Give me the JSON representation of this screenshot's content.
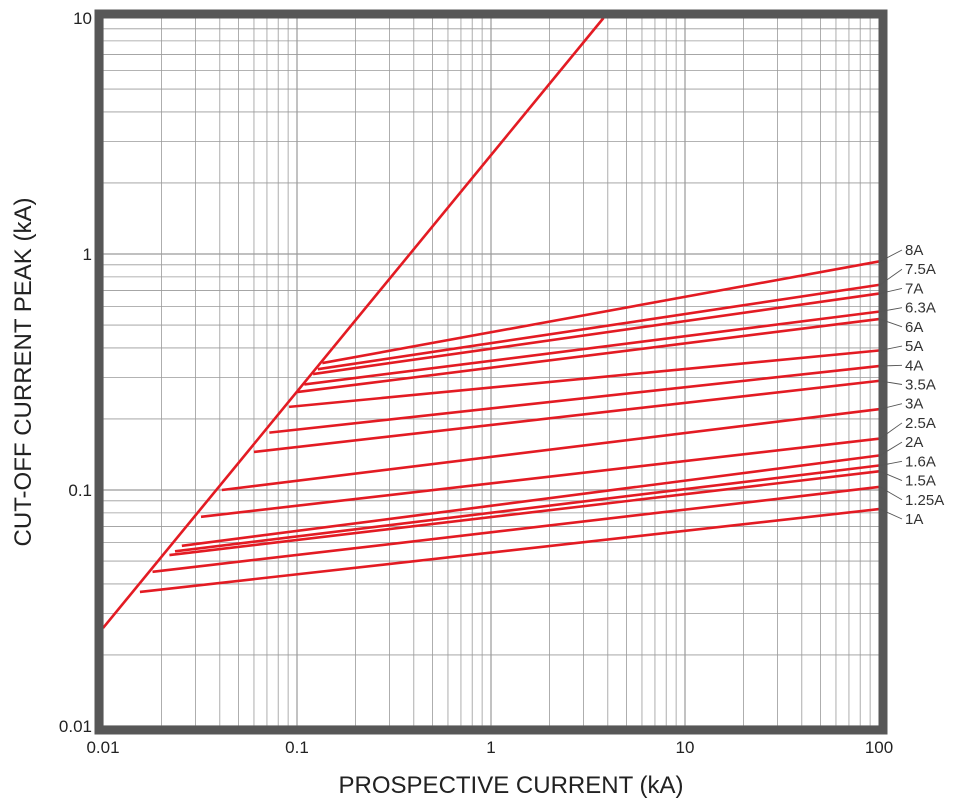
{
  "chart_data": {
    "type": "line",
    "title": "",
    "xlabel": "PROSPECTIVE CURRENT (kA)",
    "ylabel": "CUT-OFF CURRENT PEAK (kA)",
    "xscale": "log",
    "yscale": "log",
    "xlim": [
      0.01,
      100
    ],
    "ylim": [
      0.01,
      10
    ],
    "grid": true,
    "legend": "none",
    "x_ticks": [
      "0.01",
      "0.1",
      "1",
      "10",
      "100"
    ],
    "y_ticks": [
      "0.01",
      "0.1",
      "1",
      "10"
    ],
    "colors": {
      "curve": "#e31b23",
      "grid": "#9a9a9a",
      "frame": "#575757"
    },
    "envelope": {
      "x": [
        0.01,
        3.8
      ],
      "y": [
        0.026,
        10
      ]
    },
    "series": [
      {
        "name": "8A",
        "x": [
          0.135,
          100
        ],
        "y": [
          0.345,
          0.93
        ]
      },
      {
        "name": "7.5A",
        "x": [
          0.128,
          100
        ],
        "y": [
          0.325,
          0.74
        ]
      },
      {
        "name": "7A",
        "x": [
          0.121,
          100
        ],
        "y": [
          0.31,
          0.68
        ]
      },
      {
        "name": "6.3A",
        "x": [
          0.109,
          100
        ],
        "y": [
          0.28,
          0.57
        ]
      },
      {
        "name": "6A",
        "x": [
          0.1,
          100
        ],
        "y": [
          0.26,
          0.53
        ]
      },
      {
        "name": "5A",
        "x": [
          0.091,
          100
        ],
        "y": [
          0.225,
          0.39
        ]
      },
      {
        "name": "4A",
        "x": [
          0.072,
          100
        ],
        "y": [
          0.175,
          0.335
        ]
      },
      {
        "name": "3.5A",
        "x": [
          0.06,
          100
        ],
        "y": [
          0.145,
          0.29
        ]
      },
      {
        "name": "3A",
        "x": [
          0.041,
          100
        ],
        "y": [
          0.1,
          0.22
        ]
      },
      {
        "name": "2.5A",
        "x": [
          0.032,
          100
        ],
        "y": [
          0.077,
          0.165
        ]
      },
      {
        "name": "2A",
        "x": [
          0.0255,
          100
        ],
        "y": [
          0.058,
          0.14
        ]
      },
      {
        "name": "1.6A",
        "x": [
          0.0235,
          100
        ],
        "y": [
          0.055,
          0.127
        ]
      },
      {
        "name": "1.5A",
        "x": [
          0.022,
          100
        ],
        "y": [
          0.053,
          0.12
        ]
      },
      {
        "name": "1.25A",
        "x": [
          0.018,
          100
        ],
        "y": [
          0.045,
          0.103
        ]
      },
      {
        "name": "1A",
        "x": [
          0.0155,
          100
        ],
        "y": [
          0.037,
          0.083
        ]
      }
    ]
  }
}
